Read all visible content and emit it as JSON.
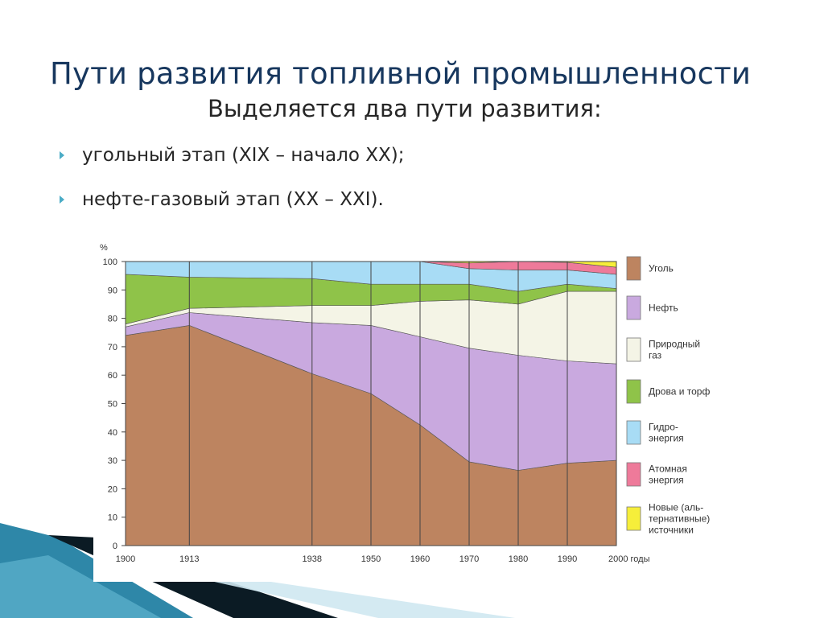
{
  "slide": {
    "title": "Пути развития топливной промышленности",
    "subtitle": "Выделяется два пути развития:",
    "bullets": [
      "угольный этап (XIX – начало XX);",
      "нефте-газовый этап (XX – XXI)."
    ]
  },
  "colors": {
    "title": "#17375e",
    "bullet_marker": "#4bacc6",
    "decor_blue": "#2e87a8",
    "decor_dark": "#0b1b24"
  },
  "chart_data": {
    "type": "area",
    "stacked": true,
    "title": "",
    "xlabel": "годы",
    "ylabel": "%",
    "ylim": [
      0,
      100
    ],
    "yticks": [
      0,
      10,
      20,
      30,
      40,
      50,
      60,
      70,
      80,
      90,
      100
    ],
    "x": [
      1900,
      1913,
      1938,
      1950,
      1960,
      1970,
      1980,
      1990,
      2000
    ],
    "x_tick_labels": [
      "1900",
      "1913",
      "1938",
      "1950",
      "1960",
      "1970",
      "1980",
      "1990",
      "2000 годы"
    ],
    "grid_vertical": true,
    "legend_position": "right",
    "series": [
      {
        "name": "Уголь",
        "color": "#bd8460",
        "values": [
          74,
          77.5,
          60.5,
          53.5,
          42.5,
          29.5,
          26.5,
          29,
          30
        ]
      },
      {
        "name": "Нефть",
        "color": "#c9a9df",
        "values": [
          3,
          4.5,
          18,
          24,
          31,
          40,
          40.5,
          36,
          34
        ]
      },
      {
        "name": "Природный\nгаз",
        "color": "#f4f4e6",
        "values": [
          1,
          1.5,
          6,
          7,
          12.5,
          17,
          18,
          24.5,
          25.5
        ]
      },
      {
        "name": "Дрова и торф",
        "color": "#8fc349",
        "values": [
          17.5,
          11,
          9.5,
          7.5,
          6,
          5.5,
          4.5,
          2.5,
          1
        ]
      },
      {
        "name": "Гидро-\nэнергия",
        "color": "#a8dcf5",
        "values": [
          4.5,
          5.5,
          6,
          8,
          8,
          5.5,
          7.5,
          5,
          5
        ]
      },
      {
        "name": "Атомная\nэнергия",
        "color": "#ee7a9a",
        "values": [
          0,
          0,
          0,
          0,
          0,
          2,
          3,
          2.7,
          2.5
        ]
      },
      {
        "name": "Новые (аль-\nтернативные)\nисточники",
        "color": "#f6ee3a",
        "values": [
          0,
          0,
          0,
          0,
          0,
          0.5,
          0,
          0.3,
          2
        ]
      }
    ]
  }
}
